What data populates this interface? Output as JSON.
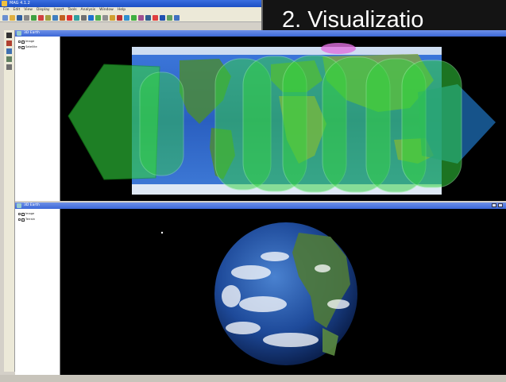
{
  "slide": {
    "heading": "2. Visualizatio"
  },
  "app": {
    "title": "MAG 4.1.2",
    "menu": [
      "File",
      "Edit",
      "View",
      "Display",
      "Insert",
      "Tools",
      "Analysis",
      "Window",
      "Help"
    ]
  },
  "toolbar": {
    "buttons": [
      "new",
      "open",
      "save",
      "print",
      "zoom-in",
      "zoom-out",
      "pan",
      "rotate",
      "select",
      "measure",
      "layers",
      "settings",
      "globe",
      "map",
      "grid",
      "info",
      "play",
      "pause",
      "stop",
      "record",
      "camera",
      "export",
      "import",
      "refresh",
      "help"
    ]
  },
  "top_panel": {
    "title": "3D Earth",
    "layers": [
      "Image",
      "Satellite"
    ]
  },
  "bottom_panel": {
    "title": "3D Earth",
    "layers": [
      "Image",
      "Terrain"
    ]
  },
  "colors": {
    "accent": "#3c68d6",
    "coverage": "#34e040",
    "coverage_edge": "#1aa01f",
    "ocean": "#2b62c9",
    "background": "#000000"
  }
}
